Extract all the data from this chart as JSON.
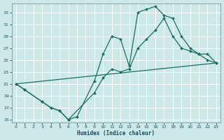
{
  "xlabel": "Humidex (Indice chaleur)",
  "bg_color": "#cce8e8",
  "grid_color": "#ffffff",
  "line_color": "#1a6e60",
  "xlim_min": -0.5,
  "xlim_max": 23.5,
  "ylim_min": 14.5,
  "ylim_max": 34.5,
  "yticks": [
    15,
    17,
    19,
    21,
    23,
    25,
    27,
    29,
    31,
    33
  ],
  "xticks": [
    0,
    1,
    2,
    3,
    4,
    5,
    6,
    7,
    8,
    9,
    10,
    11,
    12,
    13,
    14,
    15,
    16,
    17,
    18,
    19,
    20,
    21,
    22,
    23
  ],
  "curve1_x": [
    0,
    1,
    3,
    4,
    5,
    6,
    7,
    9,
    10,
    11,
    12,
    13,
    14,
    15,
    16,
    17,
    18,
    19,
    20,
    21,
    22,
    23
  ],
  "curve1_y": [
    21,
    20,
    18,
    17,
    16.5,
    15,
    15.5,
    21.5,
    26,
    29,
    28.5,
    24,
    33,
    33.5,
    34,
    32.5,
    32,
    29,
    27,
    26,
    25,
    24.5
  ],
  "curve2_x": [
    0,
    1,
    3,
    4,
    5,
    6,
    9,
    10,
    11,
    12,
    13,
    14,
    15,
    16,
    17,
    18,
    19,
    20,
    21,
    22,
    23
  ],
  "curve2_y": [
    21,
    20,
    18,
    17,
    16.5,
    15,
    19.5,
    22,
    23.5,
    23,
    23.5,
    27,
    28.5,
    30,
    32,
    29,
    27,
    26.5,
    26,
    26,
    24.5
  ],
  "line3_x": [
    0,
    23
  ],
  "line3_y": [
    21,
    24.5
  ]
}
